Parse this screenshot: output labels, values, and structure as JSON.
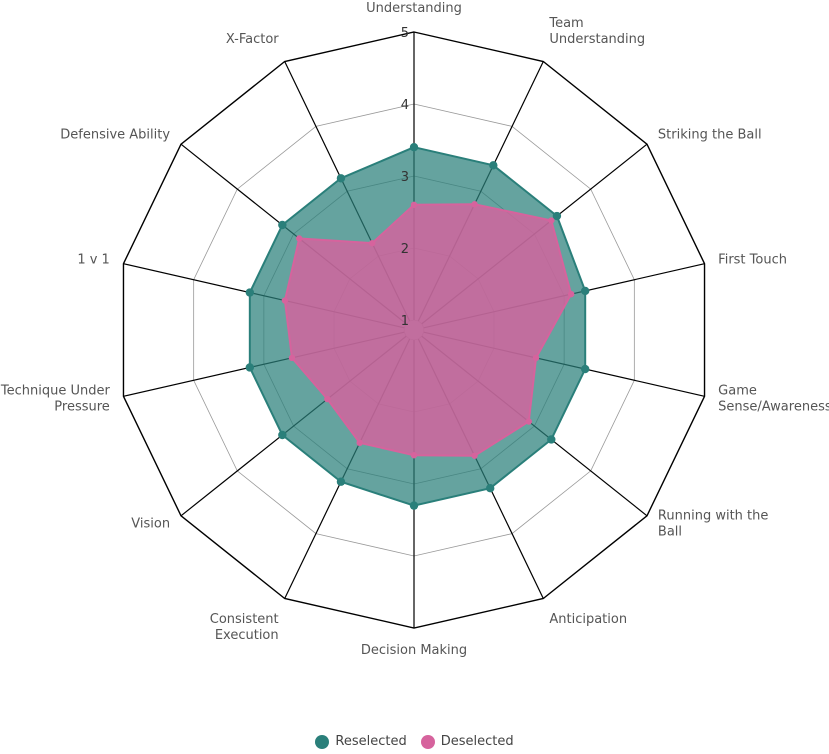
{
  "chart_data": {
    "type": "radar",
    "title": "",
    "axes": [
      "General Game\nUnderstanding",
      "Team\nUnderstanding",
      "Striking the Ball",
      "First Touch",
      "Game\nSense/Awareness",
      "Running with the\nBall",
      "Anticipation",
      "Decision Making",
      "Consistent\nExecution",
      "Vision",
      "Technique Under\nPressure",
      "1 v 1",
      "Defensive Ability",
      "X-Factor"
    ],
    "rticks": [
      "1",
      "2",
      "3",
      "4",
      "5"
    ],
    "rlim": [
      1,
      5
    ],
    "grid": true,
    "legend_position": "bottom",
    "series": [
      {
        "name": "Reselected",
        "color": "#2a7f7a",
        "values": [
          3.4,
          3.4,
          3.4,
          3.3,
          3.3,
          3.3,
          3.3,
          3.3,
          3.2,
          3.2,
          3.2,
          3.2,
          3.2,
          3.2
        ]
      },
      {
        "name": "Deselected",
        "color": "#d6639d",
        "values": [
          2.6,
          2.8,
          3.3,
          3.1,
          2.6,
          2.9,
          2.8,
          2.6,
          2.6,
          2.4,
          2.6,
          2.7,
          2.9,
          2.2
        ]
      }
    ]
  }
}
